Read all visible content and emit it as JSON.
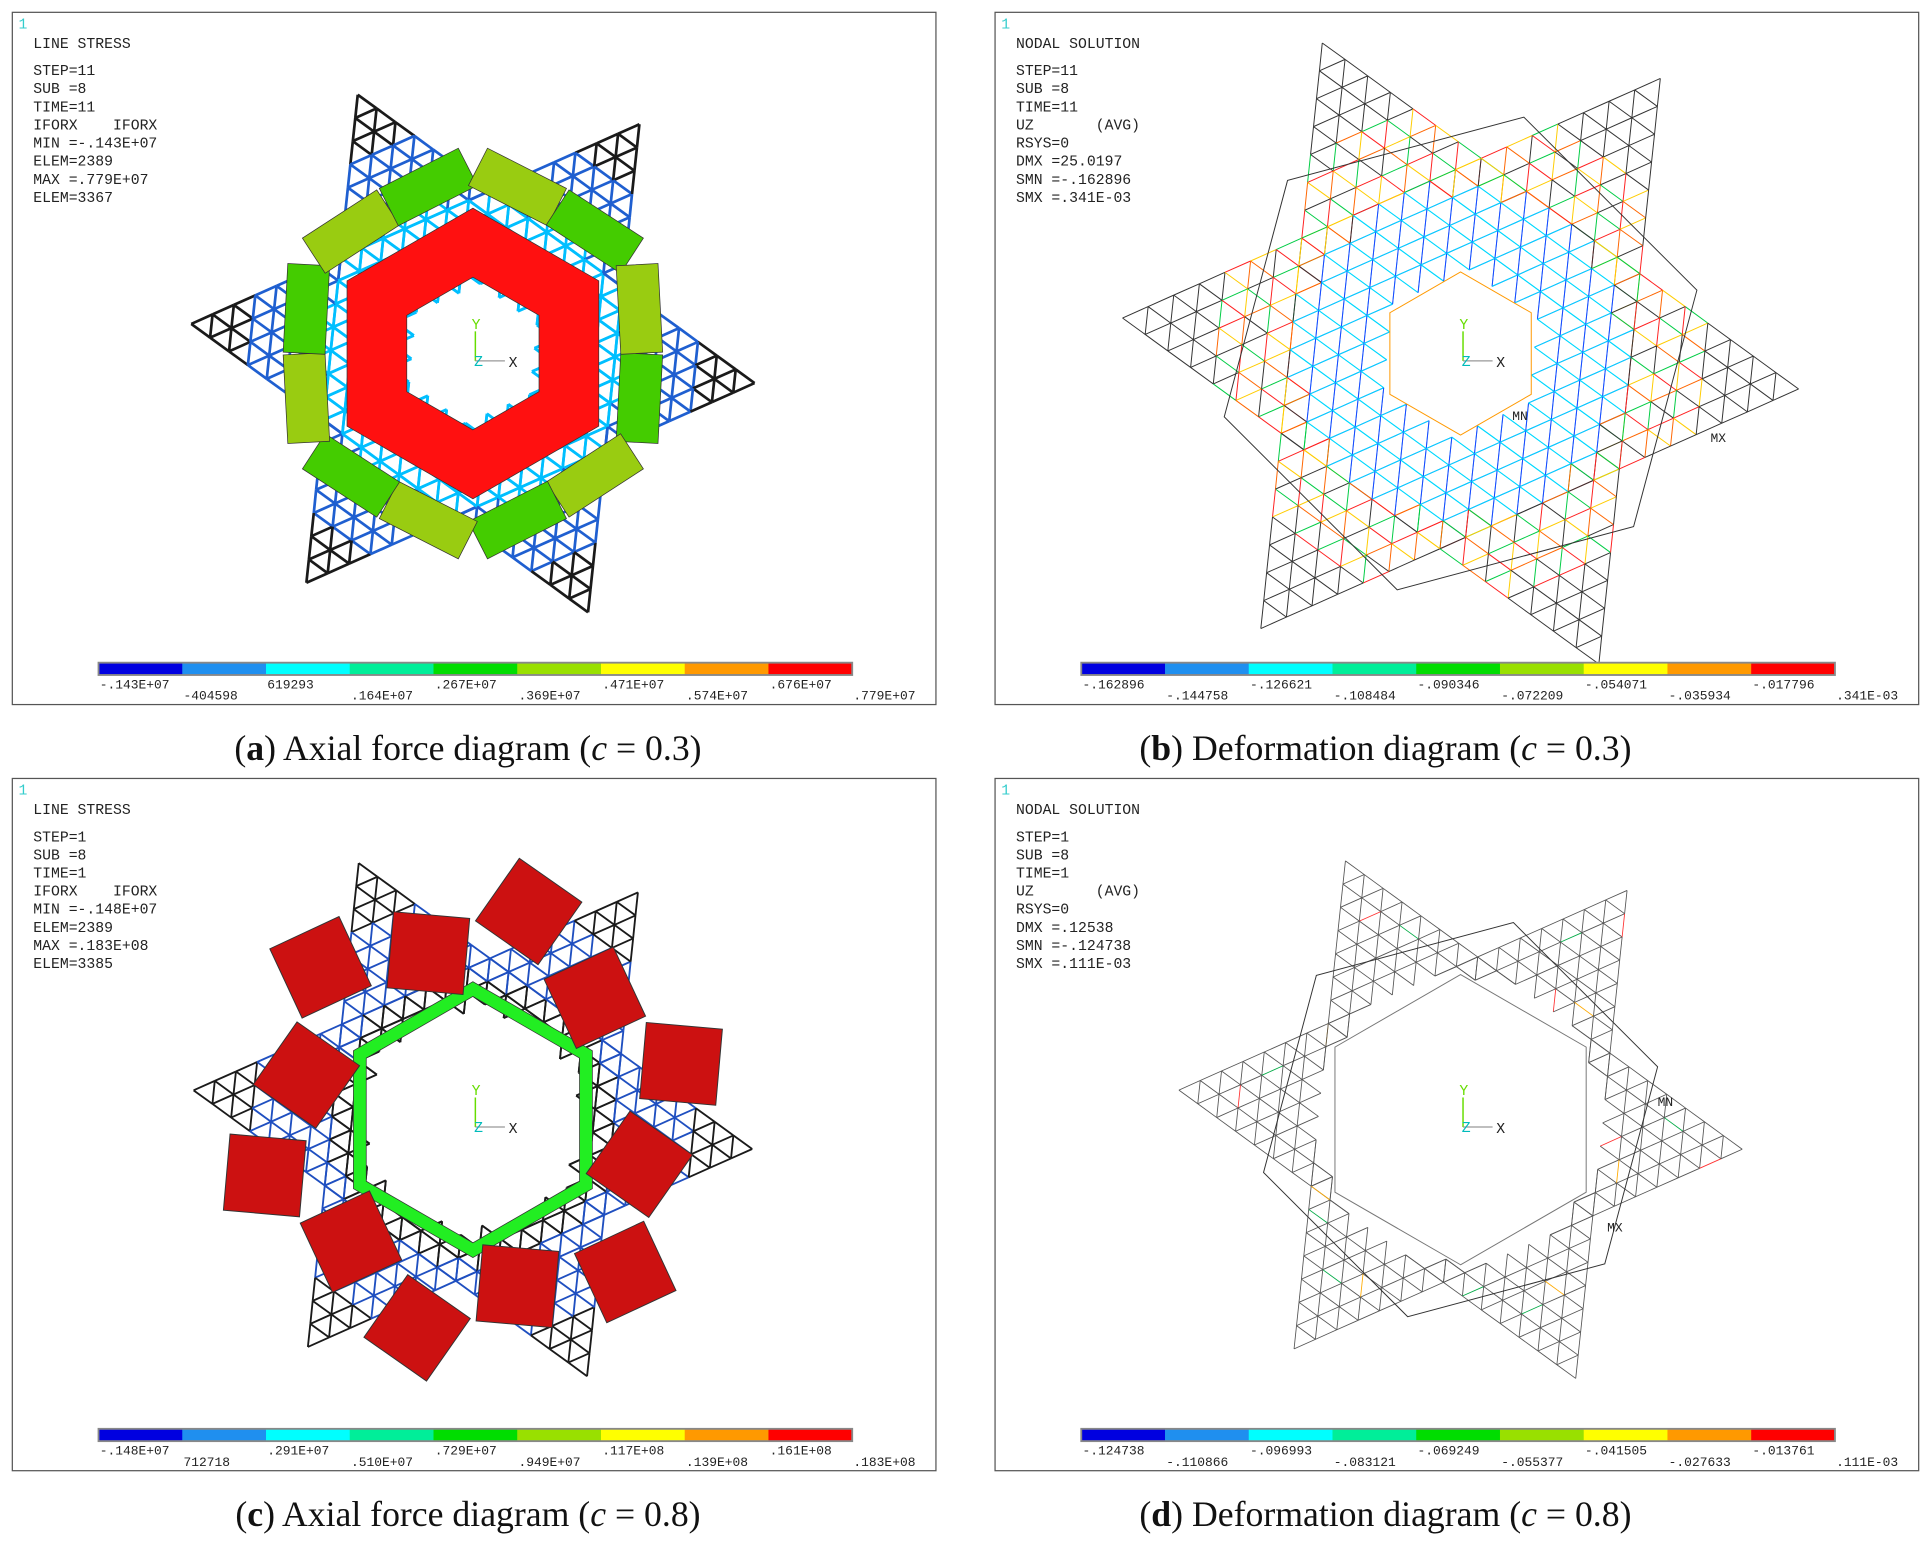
{
  "panels": [
    {
      "corner_number": "1",
      "header": [
        "LINE STRESS",
        "STEP=11",
        "SUB =8",
        "TIME=11",
        "IFORX    IFORX",
        "MIN =-.143E+07",
        "ELEM=2389",
        "MAX =.779E+07",
        "ELEM=3367"
      ],
      "triad": {
        "y": "Y",
        "z": "Z",
        "x": "X"
      },
      "annotations": [],
      "legend": {
        "colors": [
          "#0000e0",
          "#1f8fef",
          "#00ffff",
          "#00ee99",
          "#00dd00",
          "#99e000",
          "#ffff00",
          "#ff9900",
          "#ff0000"
        ],
        "labels": [
          "-.143E+07",
          "-404598",
          "619293",
          ".164E+07",
          ".267E+07",
          ".369E+07",
          ".471E+07",
          ".574E+07",
          ".676E+07",
          ".779E+07"
        ]
      },
      "caption": [
        {
          "text": "(",
          "style": "normal"
        },
        {
          "text": "a",
          "style": "bold"
        },
        {
          "text": ") Axial force diagram (",
          "style": "normal"
        },
        {
          "text": "c",
          "style": "italic"
        },
        {
          "text": " = 0.3)",
          "style": "normal"
        }
      ]
    },
    {
      "corner_number": "1",
      "header": [
        "NODAL SOLUTION",
        "STEP=11",
        "SUB =8",
        "TIME=11",
        "UZ       (AVG)",
        "RSYS=0",
        "DMX =25.0197",
        "SMN =-.162896",
        "SMX =.341E-03"
      ],
      "triad": {
        "y": "Y",
        "z": "Z",
        "x": "X"
      },
      "annotations": [
        "MN",
        "MX"
      ],
      "legend": {
        "colors": [
          "#0000e0",
          "#1f8fef",
          "#00ffff",
          "#00ee99",
          "#00dd00",
          "#99e000",
          "#ffff00",
          "#ff9900",
          "#ff0000"
        ],
        "labels": [
          "-.162896",
          "-.144758",
          "-.126621",
          "-.108484",
          "-.090346",
          "-.072209",
          "-.054071",
          "-.035934",
          "-.017796",
          ".341E-03"
        ]
      },
      "caption": [
        {
          "text": "(",
          "style": "normal"
        },
        {
          "text": "b",
          "style": "bold"
        },
        {
          "text": ") Deformation diagram (",
          "style": "normal"
        },
        {
          "text": "c",
          "style": "italic"
        },
        {
          "text": " = 0.3)",
          "style": "normal"
        }
      ]
    },
    {
      "corner_number": "1",
      "header": [
        "LINE STRESS",
        "STEP=1",
        "SUB =8",
        "TIME=1",
        "IFORX    IFORX",
        "MIN =-.148E+07",
        "ELEM=2389",
        "MAX =.183E+08",
        "ELEM=3385"
      ],
      "triad": {
        "y": "Y",
        "z": "Z",
        "x": "X"
      },
      "annotations": [],
      "legend": {
        "colors": [
          "#0000e0",
          "#1f8fef",
          "#00ffff",
          "#00ee99",
          "#00dd00",
          "#99e000",
          "#ffff00",
          "#ff9900",
          "#ff0000"
        ],
        "labels": [
          "-.148E+07",
          "712718",
          ".291E+07",
          ".510E+07",
          ".729E+07",
          ".949E+07",
          ".117E+08",
          ".139E+08",
          ".161E+08",
          ".183E+08"
        ]
      },
      "caption": [
        {
          "text": "(",
          "style": "normal"
        },
        {
          "text": "c",
          "style": "bold"
        },
        {
          "text": ") Axial force diagram (",
          "style": "normal"
        },
        {
          "text": "c",
          "style": "italic"
        },
        {
          "text": " = 0.8)",
          "style": "normal"
        }
      ]
    },
    {
      "corner_number": "1",
      "header": [
        "NODAL SOLUTION",
        "STEP=1",
        "SUB =8",
        "TIME=1",
        "UZ       (AVG)",
        "RSYS=0",
        "DMX =.12538",
        "SMN =-.124738",
        "SMX =.111E-03"
      ],
      "triad": {
        "y": "Y",
        "z": "Z",
        "x": "X"
      },
      "annotations": [
        "MN",
        "MX"
      ],
      "legend": {
        "colors": [
          "#0000e0",
          "#1f8fef",
          "#00ffff",
          "#00ee99",
          "#00dd00",
          "#99e000",
          "#ffff00",
          "#ff9900",
          "#ff0000"
        ],
        "labels": [
          "-.124738",
          "-.110866",
          "-.096993",
          "-.083121",
          "-.069249",
          "-.055377",
          "-.041505",
          "-.027633",
          "-.013761",
          ".111E-03"
        ]
      },
      "caption": [
        {
          "text": "(",
          "style": "normal"
        },
        {
          "text": "d",
          "style": "bold"
        },
        {
          "text": ") Deformation diagram (",
          "style": "normal"
        },
        {
          "text": "c",
          "style": "italic"
        },
        {
          "text": " = 0.8)",
          "style": "normal"
        }
      ]
    }
  ]
}
